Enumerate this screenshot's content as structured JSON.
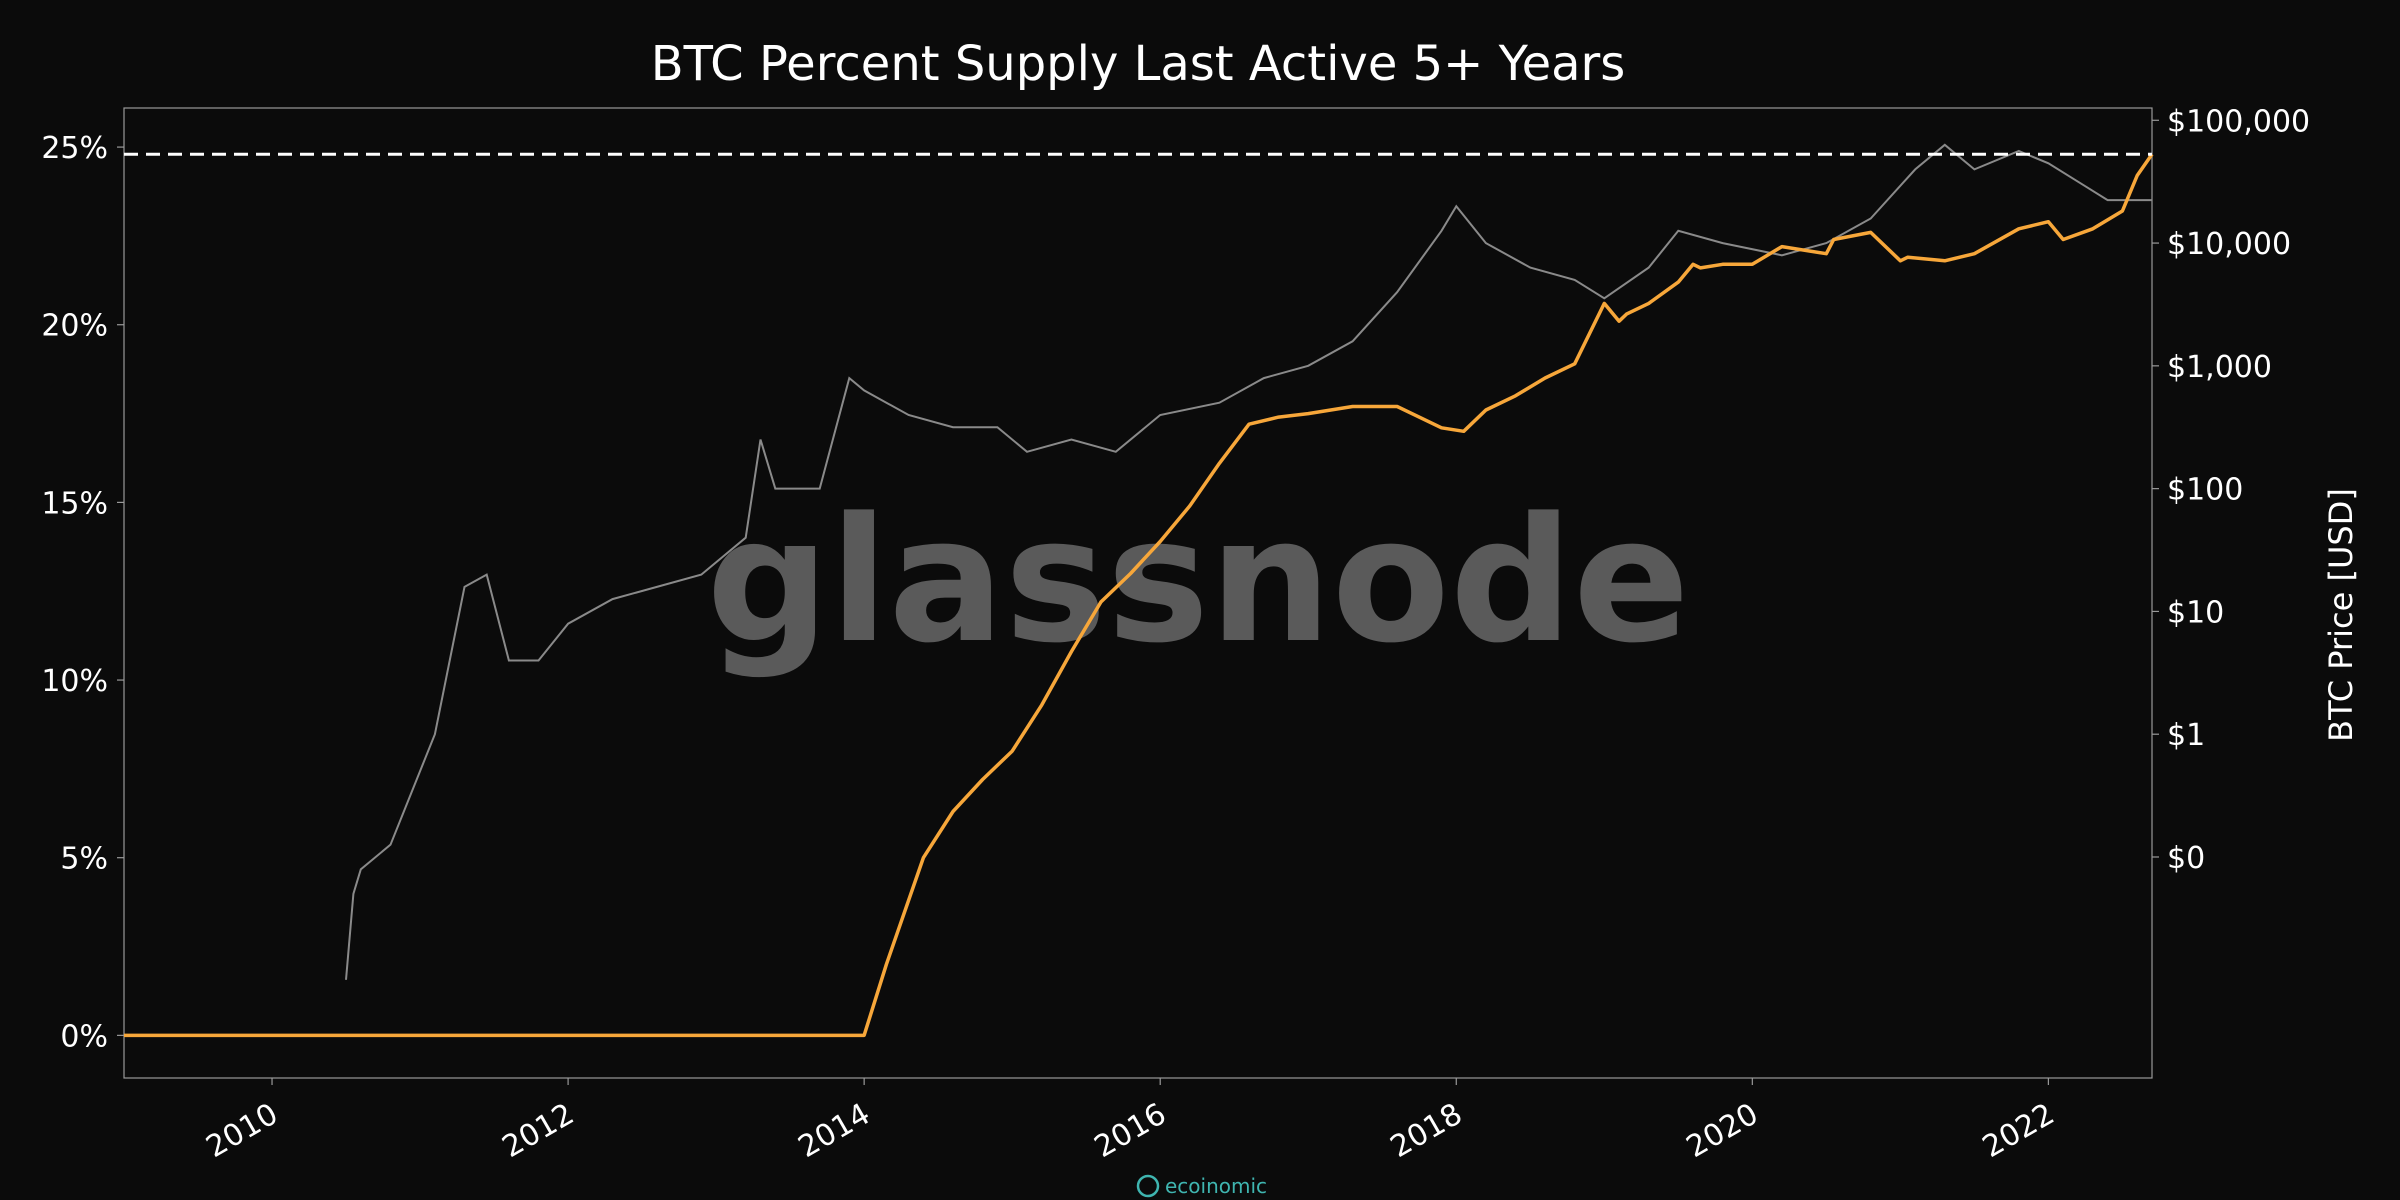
{
  "chart_data": {
    "type": "line",
    "title": "BTC Percent Supply Last Active 5+ Years",
    "xlabel": "",
    "ylabel_left": "",
    "ylabel_right": "BTC Price [USD]",
    "x_ticks": [
      "2010",
      "2012",
      "2014",
      "2016",
      "2018",
      "2020",
      "2022"
    ],
    "x_range": [
      2009.0,
      2022.7
    ],
    "y_left_ticks": [
      "0%",
      "5%",
      "10%",
      "15%",
      "20%",
      "25%"
    ],
    "y_left_range": [
      -1.2,
      26.1
    ],
    "y_right_ticks": [
      "$0",
      "$1",
      "$10",
      "$100",
      "$1,000",
      "$10,000",
      "$100,000"
    ],
    "y_right_log_range": [
      -2.8,
      5.1
    ],
    "reference_line_y": 24.8,
    "grid": false,
    "watermark": "glassnode",
    "footer_brand": "ecoinomic",
    "colors": {
      "background": "#0b0b0b",
      "supply_series": "#f7a73a",
      "price_series": "#8a8a8a",
      "reference_line": "#ffffff",
      "text": "#ffffff",
      "watermark": "#5a5a5a",
      "footer_brand": "#3fb5b0"
    },
    "series": [
      {
        "axis": "left",
        "x": [
          2009.0,
          2014.0,
          2014.15,
          2014.4,
          2014.6,
          2014.8,
          2015.0,
          2015.2,
          2015.4,
          2015.6,
          2015.8,
          2016.0,
          2016.2,
          2016.4,
          2016.6,
          2016.8,
          2017.0,
          2017.3,
          2017.6,
          2017.9,
          2018.05,
          2018.2,
          2018.4,
          2018.6,
          2018.8,
          2019.0,
          2019.1,
          2019.15,
          2019.3,
          2019.5,
          2019.6,
          2019.65,
          2019.8,
          2020.0,
          2020.2,
          2020.5,
          2020.55,
          2020.8,
          2021.0,
          2021.05,
          2021.3,
          2021.5,
          2021.8,
          2022.0,
          2022.1,
          2022.3,
          2022.5,
          2022.6,
          2022.7
        ],
        "y": [
          0.0,
          0.0,
          2.0,
          5.0,
          6.3,
          7.2,
          8.0,
          9.3,
          10.8,
          12.2,
          13.0,
          13.9,
          14.9,
          16.1,
          17.2,
          17.4,
          17.5,
          17.7,
          17.7,
          17.1,
          17.0,
          17.6,
          18.0,
          18.5,
          18.9,
          20.6,
          20.1,
          20.3,
          20.6,
          21.2,
          21.7,
          21.6,
          21.7,
          21.7,
          22.2,
          22.0,
          22.4,
          22.6,
          21.8,
          21.9,
          21.8,
          22.0,
          22.7,
          22.9,
          22.4,
          22.7,
          23.2,
          24.2,
          24.8
        ]
      },
      {
        "axis": "right",
        "x": [
          2010.5,
          2010.55,
          2010.6,
          2010.8,
          2010.9,
          2011.1,
          2011.3,
          2011.45,
          2011.6,
          2011.8,
          2012.0,
          2012.3,
          2012.6,
          2012.9,
          2013.2,
          2013.3,
          2013.4,
          2013.7,
          2013.9,
          2014.0,
          2014.3,
          2014.6,
          2014.9,
          2015.1,
          2015.4,
          2015.7,
          2016.0,
          2016.4,
          2016.7,
          2017.0,
          2017.3,
          2017.6,
          2017.9,
          2018.0,
          2018.2,
          2018.5,
          2018.8,
          2019.0,
          2019.3,
          2019.5,
          2019.8,
          2020.2,
          2020.5,
          2020.8,
          2021.1,
          2021.3,
          2021.5,
          2021.8,
          2022.0,
          2022.2,
          2022.4,
          2022.7
        ],
        "y": [
          -2.0,
          -1.3,
          -1.1,
          -0.9,
          -0.6,
          0.0,
          1.2,
          1.3,
          0.6,
          0.6,
          0.9,
          1.1,
          1.2,
          1.3,
          1.6,
          2.4,
          2.0,
          2.0,
          2.9,
          2.8,
          2.6,
          2.5,
          2.5,
          2.3,
          2.4,
          2.3,
          2.6,
          2.7,
          2.9,
          3.0,
          3.2,
          3.6,
          4.1,
          4.3,
          4.0,
          3.8,
          3.7,
          3.55,
          3.8,
          4.1,
          4.0,
          3.9,
          4.0,
          4.2,
          4.6,
          4.8,
          4.6,
          4.75,
          4.65,
          4.5,
          4.35,
          4.35
        ]
      }
    ]
  }
}
